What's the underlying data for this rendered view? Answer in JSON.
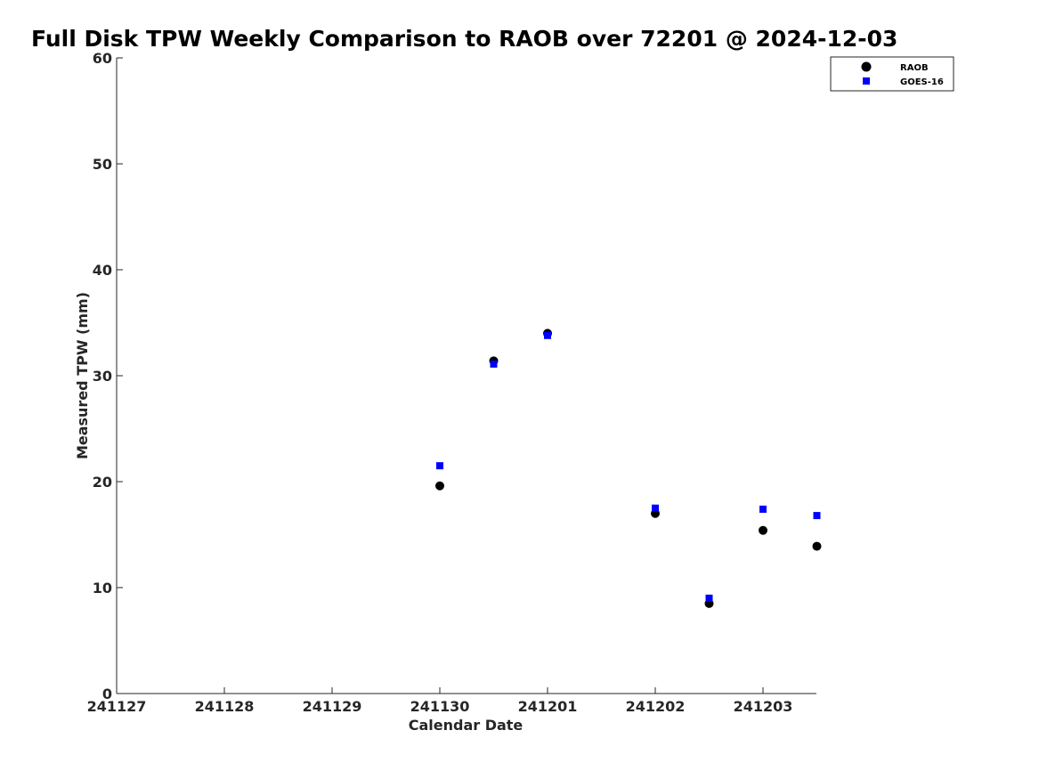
{
  "chart_data": {
    "type": "scatter",
    "title": "Full Disk TPW Weekly Comparison to RAOB over 72201 @ 2024-12-03",
    "xlabel": "Calendar Date",
    "ylabel": "Measured TPW (mm)",
    "x_tick_labels": [
      "241127",
      "241128",
      "241129",
      "241130",
      "241201",
      "241202",
      "241203"
    ],
    "y_ticks": [
      0,
      10,
      20,
      30,
      40,
      50,
      60
    ],
    "ylim": [
      0,
      60
    ],
    "grid": false,
    "legend_position": "top-right",
    "series": [
      {
        "name": "RAOB",
        "marker": "circle",
        "color": "#000000",
        "points": [
          {
            "x": "2024-11-30 00:00",
            "y": 19.6
          },
          {
            "x": "2024-11-30 12:00",
            "y": 31.4
          },
          {
            "x": "2024-12-01 00:00",
            "y": 34.0
          },
          {
            "x": "2024-12-02 00:00",
            "y": 17.0
          },
          {
            "x": "2024-12-02 12:00",
            "y": 8.5
          },
          {
            "x": "2024-12-03 00:00",
            "y": 15.4
          },
          {
            "x": "2024-12-03 12:00",
            "y": 13.9
          }
        ]
      },
      {
        "name": "GOES-16",
        "marker": "square",
        "color": "#0000ff",
        "points": [
          {
            "x": "2024-11-30 00:00",
            "y": 21.5
          },
          {
            "x": "2024-11-30 12:00",
            "y": 31.1
          },
          {
            "x": "2024-12-01 00:00",
            "y": 33.8
          },
          {
            "x": "2024-12-02 00:00",
            "y": 17.5
          },
          {
            "x": "2024-12-02 12:00",
            "y": 9.0
          },
          {
            "x": "2024-12-03 00:00",
            "y": 17.4
          },
          {
            "x": "2024-12-03 12:00",
            "y": 16.8
          }
        ]
      }
    ]
  }
}
